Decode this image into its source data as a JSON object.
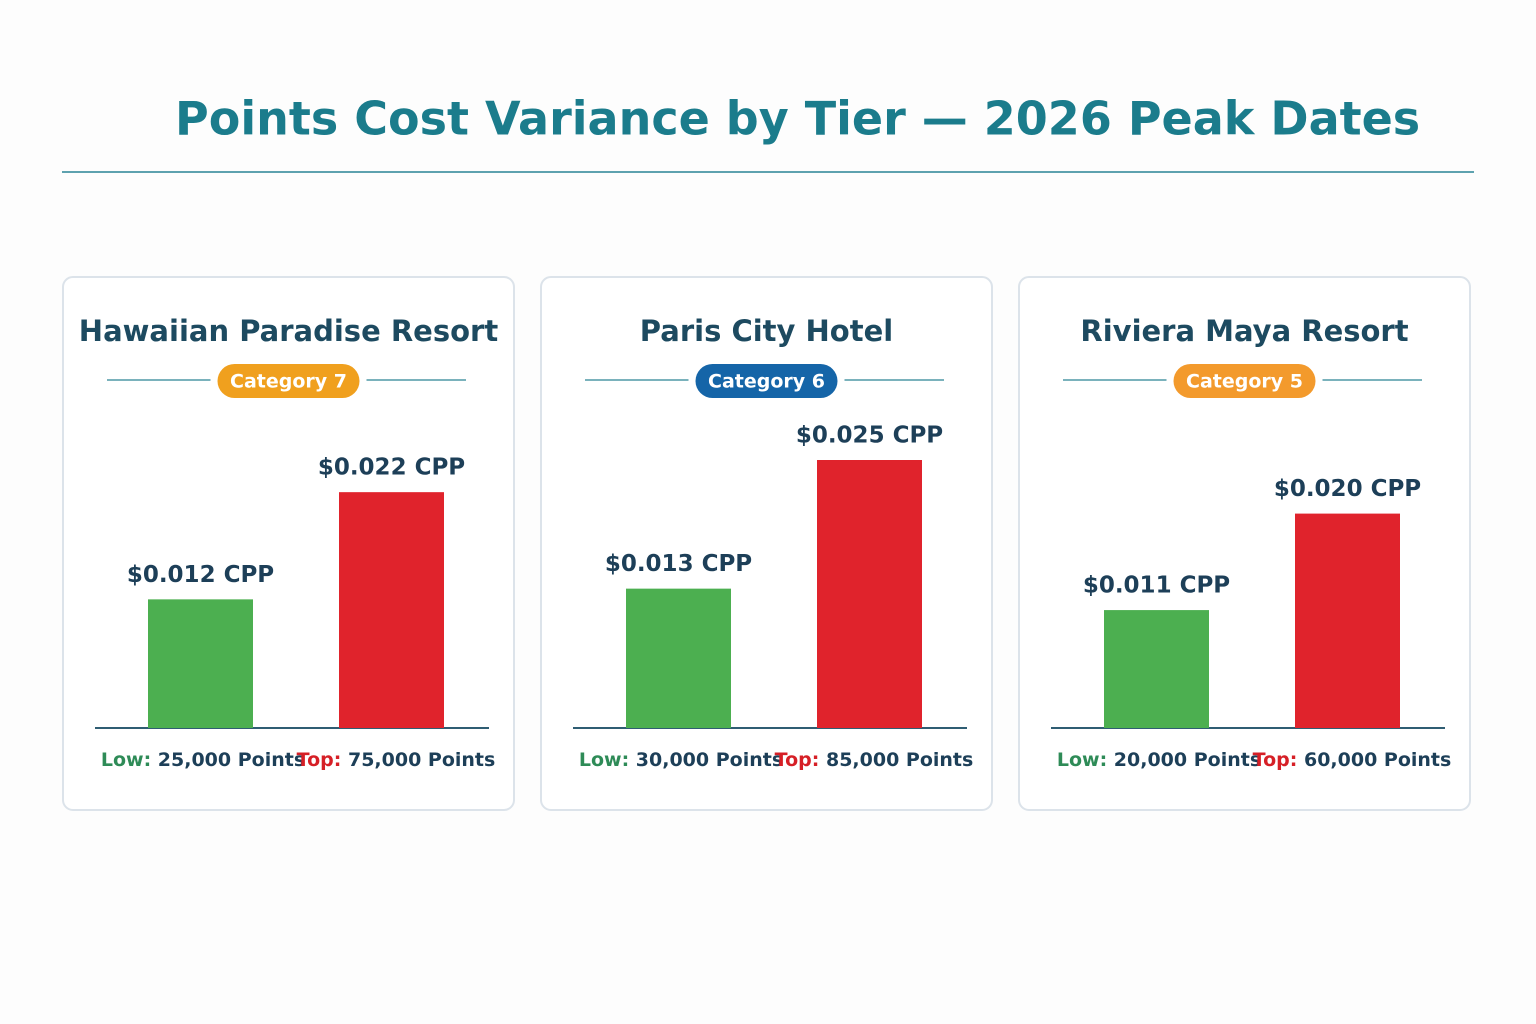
{
  "title": "Points Cost Variance by Tier — 2026 Peak Dates",
  "chart_data": [
    {
      "type": "bar",
      "title": "Hawaiian Paradise Resort",
      "badge": "Category 7",
      "badge_color": "#f0a01e",
      "categories": [
        "Low:",
        "Top:"
      ],
      "points_labels": [
        "25,000 Points",
        "75,000 Points"
      ],
      "values": [
        0.012,
        0.022
      ],
      "value_labels": [
        "$0.012 CPP",
        "$0.022 CPP"
      ],
      "colors": [
        "#4caf50",
        "#e0232c"
      ],
      "label_colors": [
        "#2e8b57",
        "#d61f26"
      ]
    },
    {
      "type": "bar",
      "title": "Paris City Hotel",
      "badge": "Category 6",
      "badge_color": "#1565a8",
      "categories": [
        "Low:",
        "Top:"
      ],
      "points_labels": [
        "30,000 Points",
        "85,000 Points"
      ],
      "values": [
        0.013,
        0.025
      ],
      "value_labels": [
        "$0.013 CPP",
        "$0.025 CPP"
      ],
      "colors": [
        "#4caf50",
        "#e0232c"
      ],
      "label_colors": [
        "#2e8b57",
        "#d61f26"
      ]
    },
    {
      "type": "bar",
      "title": "Riviera Maya Resort",
      "badge": "Category 5",
      "badge_color": "#f39a2c",
      "categories": [
        "Low:",
        "Top:"
      ],
      "points_labels": [
        "20,000 Points",
        "60,000 Points"
      ],
      "values": [
        0.011,
        0.02
      ],
      "value_labels": [
        "$0.011 CPP",
        "$0.020 CPP"
      ],
      "colors": [
        "#4caf50",
        "#e0232c"
      ],
      "label_colors": [
        "#2e8b57",
        "#d61f26"
      ]
    }
  ]
}
